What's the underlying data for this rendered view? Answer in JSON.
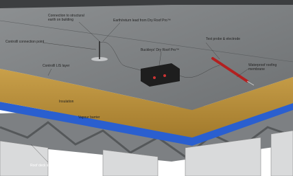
{
  "labels": {
    "earth_connection": [
      "Connection to structural",
      "earth on building"
    ],
    "earth_lead": "Earth/return lead from Dry Roof Pro™",
    "connection_point": "Controlll connection point",
    "test_probe": "Test probe & electrode",
    "device": "Buckleys' Dry Roof Pro™",
    "lis_layer": "Controlll LIS layer",
    "membrane": [
      "Waterproof roofing",
      "membrane"
    ],
    "insulation": "Insulation",
    "vapour_barrier": "Vapour barrier",
    "roof_deck": "Roof deck structure"
  }
}
